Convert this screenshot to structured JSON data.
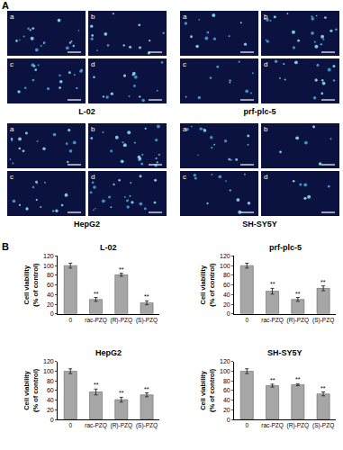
{
  "panel_labels": [
    "A",
    "B"
  ],
  "image_panels": [
    {
      "title": "L-02",
      "labels": [
        "a",
        "b",
        "c",
        "d"
      ]
    },
    {
      "title": "prf-plc-5",
      "labels": [
        "a",
        "b",
        "c",
        "d"
      ]
    },
    {
      "title": "HepG2",
      "labels": [
        "a",
        "b",
        "c",
        "d"
      ]
    },
    {
      "title": "SH-SY5Y",
      "labels": [
        "a",
        "b",
        "c",
        "d"
      ]
    }
  ],
  "chart_data": [
    {
      "type": "bar",
      "title": "L-02",
      "y_label": [
        "Cell viability",
        "(% of control)"
      ],
      "categories": [
        "0",
        "rac-PZQ",
        "(R)-PZQ",
        "(S)-PZQ"
      ],
      "values": [
        100,
        30,
        81,
        23
      ],
      "errors": [
        5,
        4,
        3,
        4
      ],
      "color": "#a6a6a6",
      "ylim": [
        0,
        120
      ],
      "yticks": [
        0,
        20,
        40,
        60,
        80,
        100,
        120
      ],
      "grid": false,
      "annotations": [
        {
          "category": "rac-PZQ",
          "text": "**"
        },
        {
          "category": "(R)-PZQ",
          "text": "**"
        },
        {
          "category": "(S)-PZQ",
          "text": "**"
        }
      ]
    },
    {
      "type": "bar",
      "title": "prf-plc-5",
      "y_label": [
        "Cell viability",
        "(% of control)"
      ],
      "categories": [
        "0",
        "rac-PZQ",
        "(R)-PZQ",
        "(S)-PZQ"
      ],
      "values": [
        100,
        47,
        30,
        53
      ],
      "errors": [
        5,
        6,
        4,
        5
      ],
      "color": "#a6a6a6",
      "ylim": [
        0,
        120
      ],
      "yticks": [
        0,
        20,
        40,
        60,
        80,
        100,
        120
      ],
      "grid": false,
      "annotations": [
        {
          "category": "rac-PZQ",
          "text": "**"
        },
        {
          "category": "(R)-PZQ",
          "text": "**"
        },
        {
          "category": "(S)-PZQ",
          "text": "**"
        }
      ]
    },
    {
      "type": "bar",
      "title": "HepG2",
      "y_label": [
        "Cell viability",
        "(% of control)"
      ],
      "categories": [
        "0",
        "rac-PZQ",
        "(R)-PZQ",
        "(S)-PZQ"
      ],
      "values": [
        100,
        57,
        41,
        51
      ],
      "errors": [
        5,
        6,
        5,
        4
      ],
      "color": "#a6a6a6",
      "ylim": [
        0,
        120
      ],
      "yticks": [
        0,
        20,
        40,
        60,
        80,
        100,
        120
      ],
      "grid": false,
      "annotations": [
        {
          "category": "rac-PZQ",
          "text": "**"
        },
        {
          "category": "(R)-PZQ",
          "text": "**"
        },
        {
          "category": "(S)-PZQ",
          "text": "**"
        }
      ]
    },
    {
      "type": "bar",
      "title": "SH-SY5Y",
      "y_label": [
        "Cell viability",
        "(% of control)"
      ],
      "categories": [
        "0",
        "rac-PZQ",
        "(R)-PZQ",
        "(S)-PZQ"
      ],
      "values": [
        100,
        70,
        72,
        53
      ],
      "errors": [
        5,
        3,
        2,
        4
      ],
      "color": "#a6a6a6",
      "ylim": [
        0,
        120
      ],
      "yticks": [
        0,
        20,
        40,
        60,
        80,
        100,
        120
      ],
      "grid": false,
      "annotations": [
        {
          "category": "rac-PZQ",
          "text": "**"
        },
        {
          "category": "(R)-PZQ",
          "text": "**"
        },
        {
          "category": "(S)-PZQ",
          "text": "**"
        }
      ]
    }
  ]
}
